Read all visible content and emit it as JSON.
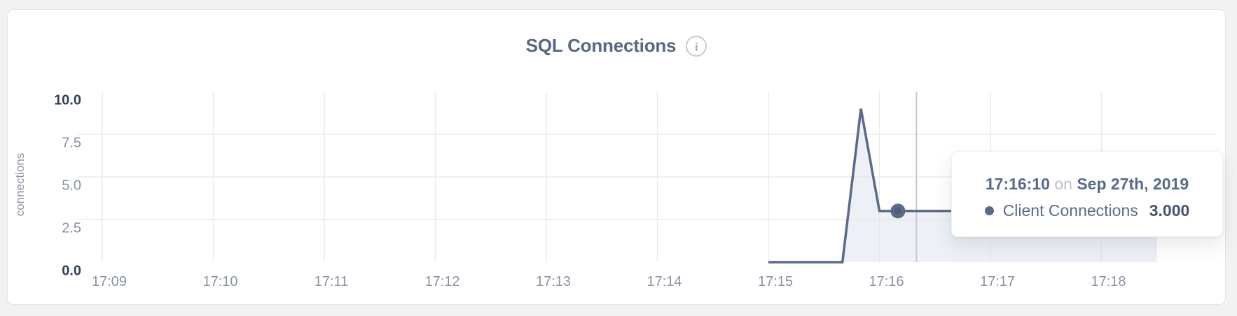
{
  "page": {
    "background": "#f2f2f3"
  },
  "card": {
    "title": "SQL Connections",
    "info_icon": "i"
  },
  "chart_data": {
    "type": "area",
    "title": "SQL Connections",
    "xlabel": "",
    "ylabel": "connections",
    "ylim": [
      0,
      10
    ],
    "y_ticks": [
      {
        "value": 10,
        "label": "10.0",
        "emphasis": true
      },
      {
        "value": 7.5,
        "label": "7.5",
        "emphasis": false
      },
      {
        "value": 5,
        "label": "5.0",
        "emphasis": false
      },
      {
        "value": 2.5,
        "label": "2.5",
        "emphasis": false
      },
      {
        "value": 0,
        "label": "0.0",
        "emphasis": true
      }
    ],
    "x_ticks": [
      "17:09",
      "17:10",
      "17:11",
      "17:12",
      "17:13",
      "17:14",
      "17:15",
      "17:16",
      "17:17",
      "17:18"
    ],
    "grid": true,
    "legend_position": "none",
    "series": [
      {
        "name": "Client Connections",
        "color": "#5b6a88",
        "fill": "rgba(222,227,236,0.55)",
        "points": [
          {
            "time": "17:15:00",
            "value": 0
          },
          {
            "time": "17:15:40",
            "value": 0
          },
          {
            "time": "17:15:50",
            "value": 9
          },
          {
            "time": "17:16:00",
            "value": 3
          },
          {
            "time": "17:18:30",
            "value": 3
          }
        ]
      }
    ],
    "highlighted_point": {
      "time": "17:16:10",
      "value": 3
    },
    "crosshair_time": "17:16:20"
  },
  "tooltip": {
    "time": "17:16:10",
    "connector": "on",
    "date": "Sep 27th, 2019",
    "series_label": "Client Connections",
    "value": "3.000"
  },
  "colors": {
    "line": "#5b6a88",
    "area_fill": "rgba(222,227,236,0.55)",
    "grid": "#e9ebee",
    "crosshair": "#c5c8ce",
    "tick_text": "#8a92a5",
    "tick_text_emphasis": "#333e58",
    "title_text": "#5a6781"
  }
}
